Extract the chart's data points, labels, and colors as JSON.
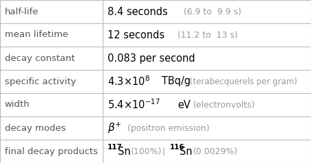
{
  "n_rows": 7,
  "col_split": 0.33,
  "border_color": "#bbbbbb",
  "label_color": "#555555",
  "value_color": "#111111",
  "gray_color": "#999999",
  "label_fontsize": 9.5,
  "value_fontsize": 10.5,
  "gray_fontsize": 9.0,
  "labels": [
    "half-life",
    "mean lifetime",
    "decay constant",
    "specific activity",
    "width",
    "decay modes",
    "final decay products"
  ]
}
